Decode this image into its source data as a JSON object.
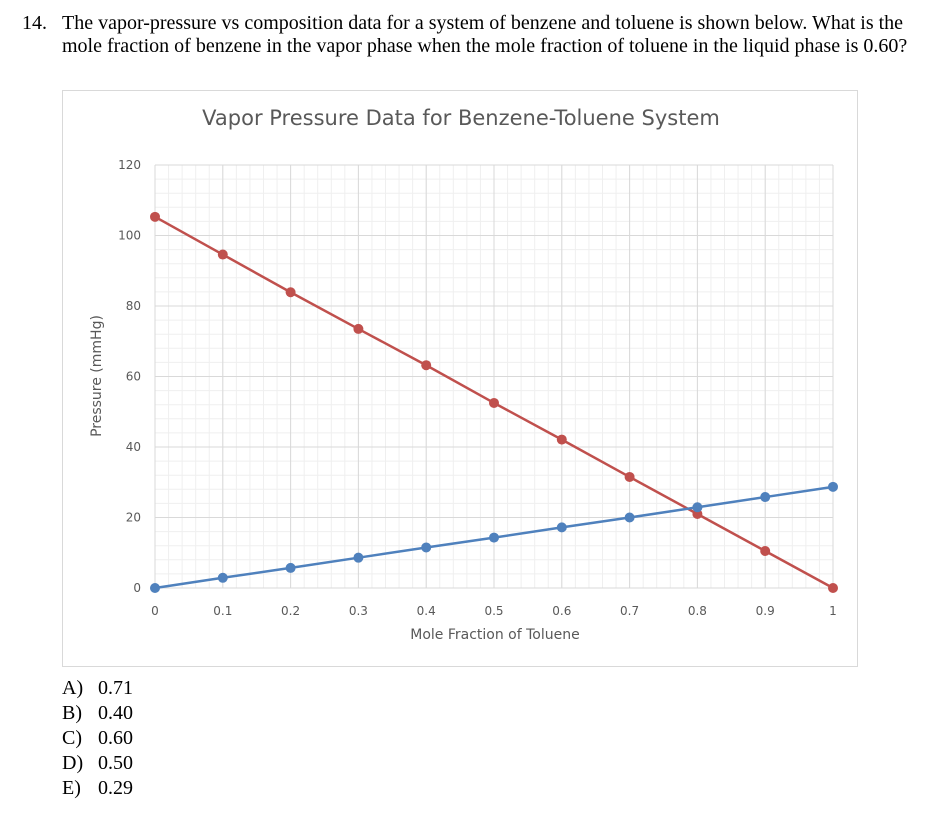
{
  "question": {
    "number": "14.",
    "text": "The vapor-pressure vs composition data for a system of benzene and toluene is shown below. What is the mole fraction of benzene in the vapor phase when the mole fraction of toluene in the liquid phase is 0.60?"
  },
  "answers": [
    {
      "letter": "A)",
      "value": "0.71"
    },
    {
      "letter": "B)",
      "value": "0.40"
    },
    {
      "letter": "C)",
      "value": "0.60"
    },
    {
      "letter": "D)",
      "value": "0.50"
    },
    {
      "letter": "E)",
      "value": "0.29"
    }
  ],
  "chart_data": {
    "type": "line",
    "title": "Vapor Pressure Data for Benzene-Toluene System",
    "xlabel": "Mole Fraction of Toluene",
    "ylabel": "Pressure (mmHg)",
    "xlim": [
      0,
      1
    ],
    "ylim": [
      0,
      120
    ],
    "xticks": [
      "0",
      "0.1",
      "0.2",
      "0.3",
      "0.4",
      "0.5",
      "0.6",
      "0.7",
      "0.8",
      "0.9",
      "1"
    ],
    "yticks": [
      "0",
      "20",
      "40",
      "60",
      "80",
      "100",
      "120"
    ],
    "grid": true,
    "x": [
      0,
      0.1,
      0.2,
      0.3,
      0.4,
      0.5,
      0.6,
      0.7,
      0.8,
      0.9,
      1
    ],
    "series": [
      {
        "values": [
          105.3,
          94.6,
          83.9,
          73.5,
          63.2,
          52.5,
          42.1,
          31.5,
          21,
          10.5,
          0
        ],
        "color": "#c0504d"
      },
      {
        "values": [
          0,
          2.9,
          5.7,
          8.6,
          11.5,
          14.3,
          17.2,
          20,
          22.9,
          25.8,
          28.7
        ],
        "color": "#4f81bd"
      }
    ]
  }
}
